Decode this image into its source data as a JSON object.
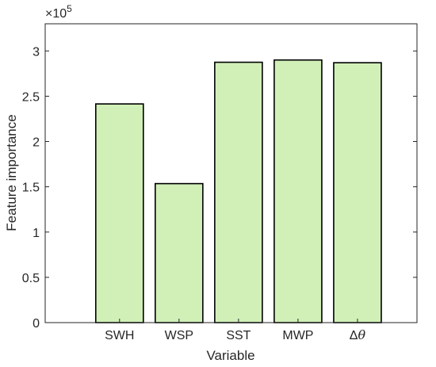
{
  "chart_data": {
    "type": "bar",
    "categories": [
      "SWH",
      "WSP",
      "SST",
      "MWP",
      "Δθ"
    ],
    "values": [
      241500,
      153500,
      287500,
      290000,
      287000
    ],
    "xlabel": "Variable",
    "ylabel": "Feature importance",
    "ylim": [
      0,
      330000
    ],
    "yticks": [
      0,
      0.5,
      1,
      1.5,
      2,
      2.5,
      3
    ],
    "ytick_labels": [
      "0",
      "0.5",
      "1",
      "1.5",
      "2",
      "2.5",
      "3"
    ],
    "y_multiplier_base": "×10",
    "y_multiplier_exponent": "5",
    "bar_color": "#d1f0b8",
    "edge_color": "#000000",
    "grid": false
  }
}
